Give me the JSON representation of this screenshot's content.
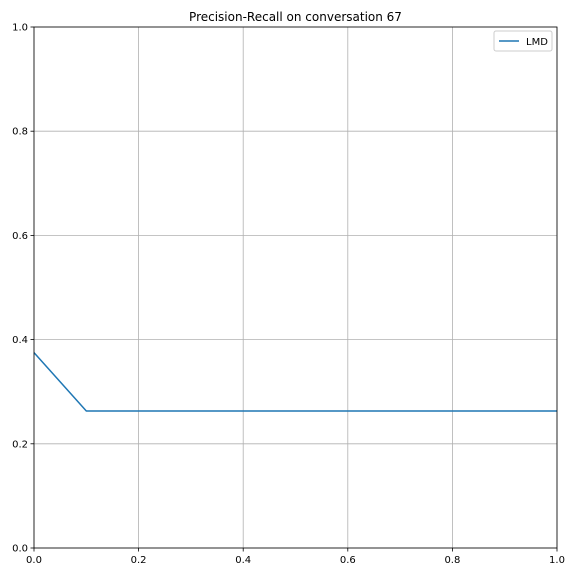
{
  "chart_data": {
    "type": "line",
    "title": "Precision-Recall on conversation 67",
    "xlabel": "",
    "ylabel": "",
    "xlim": [
      0,
      1
    ],
    "ylim": [
      0,
      1
    ],
    "grid": true,
    "legend_position": "top-right",
    "x_ticks": [
      0,
      0.2,
      0.4,
      0.6,
      0.8,
      1
    ],
    "x_tick_labels": [
      "0.0",
      "0.2",
      "0.4",
      "0.6",
      "0.8",
      "1.0"
    ],
    "y_ticks": [
      0,
      0.2,
      0.4,
      0.6,
      0.8,
      1
    ],
    "y_tick_labels": [
      "0.0",
      "0.2",
      "0.4",
      "0.6",
      "0.8",
      "1.0"
    ],
    "series": [
      {
        "name": "LMD",
        "color": "#1f77b4",
        "x": [
          0.0,
          0.1,
          0.2,
          0.3,
          0.4,
          0.5,
          0.6,
          0.7,
          0.8,
          0.9,
          1.0
        ],
        "y": [
          0.375,
          0.263,
          0.263,
          0.263,
          0.263,
          0.263,
          0.263,
          0.263,
          0.263,
          0.263,
          0.263
        ]
      }
    ]
  }
}
